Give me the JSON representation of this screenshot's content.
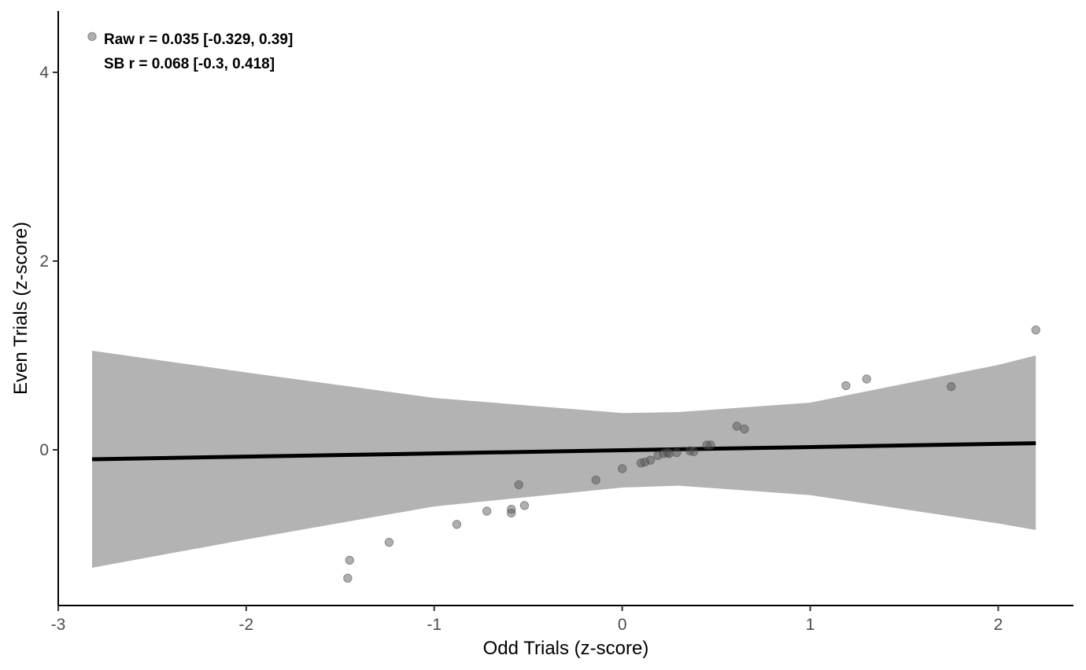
{
  "chart_data": {
    "type": "scatter",
    "xlabel": "Odd Trials (z-score)",
    "ylabel": "Even Trials (z-score)",
    "xlim": [
      -3.0,
      2.4
    ],
    "ylim": [
      -1.65,
      4.65
    ],
    "x_ticks": [
      -3,
      -2,
      -1,
      0,
      1,
      2
    ],
    "y_ticks": [
      0,
      2,
      4
    ],
    "grid": false,
    "annotations": [
      "Raw r = 0.035 [-0.329, 0.39]",
      "SB r = 0.068 [-0.3, 0.418]"
    ],
    "points": [
      {
        "x": -2.82,
        "y": 4.38
      },
      {
        "x": -1.46,
        "y": -1.36
      },
      {
        "x": -1.45,
        "y": -1.17
      },
      {
        "x": -1.24,
        "y": -0.98
      },
      {
        "x": -0.88,
        "y": -0.79
      },
      {
        "x": -0.72,
        "y": -0.65
      },
      {
        "x": -0.59,
        "y": -0.67
      },
      {
        "x": -0.59,
        "y": -0.63
      },
      {
        "x": -0.55,
        "y": -0.37
      },
      {
        "x": -0.52,
        "y": -0.59
      },
      {
        "x": -0.14,
        "y": -0.32
      },
      {
        "x": 0.0,
        "y": -0.2
      },
      {
        "x": 0.1,
        "y": -0.14
      },
      {
        "x": 0.12,
        "y": -0.13
      },
      {
        "x": 0.15,
        "y": -0.11
      },
      {
        "x": 0.19,
        "y": -0.06
      },
      {
        "x": 0.22,
        "y": -0.04
      },
      {
        "x": 0.24,
        "y": -0.03
      },
      {
        "x": 0.25,
        "y": -0.04
      },
      {
        "x": 0.29,
        "y": -0.03
      },
      {
        "x": 0.36,
        "y": -0.01
      },
      {
        "x": 0.38,
        "y": -0.02
      },
      {
        "x": 0.45,
        "y": 0.05
      },
      {
        "x": 0.47,
        "y": 0.05
      },
      {
        "x": 0.61,
        "y": 0.25
      },
      {
        "x": 0.65,
        "y": 0.22
      },
      {
        "x": 1.19,
        "y": 0.68
      },
      {
        "x": 1.3,
        "y": 0.75
      },
      {
        "x": 1.75,
        "y": 0.67
      },
      {
        "x": 2.2,
        "y": 1.27
      }
    ],
    "regression": {
      "x": [
        -2.82,
        2.2
      ],
      "y": [
        -0.1,
        0.07
      ]
    },
    "confidence_band": {
      "x": [
        -2.82,
        -2.0,
        -1.0,
        0.0,
        0.3,
        1.0,
        2.0,
        2.2
      ],
      "upper": [
        1.05,
        0.82,
        0.55,
        0.39,
        0.4,
        0.5,
        0.9,
        1.0
      ],
      "lower": [
        -1.25,
        -0.95,
        -0.6,
        -0.4,
        -0.38,
        -0.48,
        -0.78,
        -0.85
      ]
    },
    "colors": {
      "points": "#4d4d4d",
      "band": "#b3b3b3",
      "line": "#000000",
      "axis": "#000000"
    }
  }
}
